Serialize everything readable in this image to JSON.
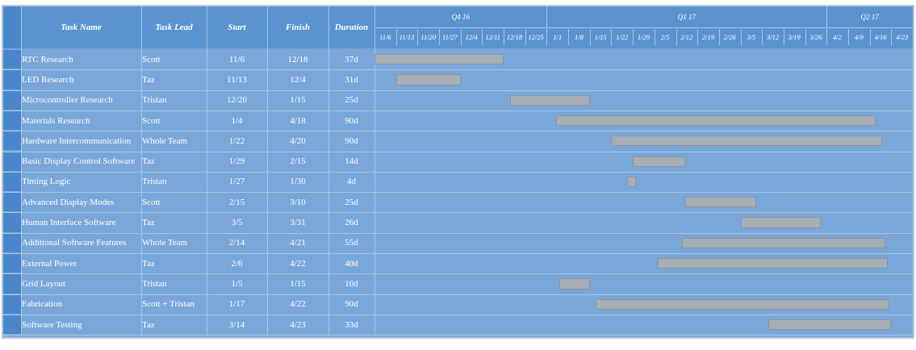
{
  "columns": {
    "task_name": "Task Name",
    "task_lead": "Task Lead",
    "start": "Start",
    "finish": "Finish",
    "duration": "Duration"
  },
  "chart_data": {
    "type": "gantt",
    "timeline": {
      "quarters": [
        "Q4 16",
        "Q1 17",
        "Q2 17"
      ],
      "weeks": [
        "11/6",
        "11/13",
        "11/20",
        "11/27",
        "12/4",
        "12/11",
        "12/18",
        "12/25",
        "1/1",
        "1/8",
        "1/15",
        "1/22",
        "1/29",
        "2/5",
        "2/12",
        "2/19",
        "2/26",
        "3/5",
        "3/12",
        "3/19",
        "3/26",
        "4/2",
        "4/9",
        "4/16",
        "4/23"
      ]
    },
    "tasks": [
      {
        "name": "RTC Research",
        "lead": "Scott",
        "start": "11/6",
        "finish": "12/18",
        "duration": "37d"
      },
      {
        "name": "LED Research",
        "lead": "Taz",
        "start": "11/13",
        "finish": "12/4",
        "duration": "31d"
      },
      {
        "name": "Microcontroller Research",
        "lead": "Tristan",
        "start": "12/20",
        "finish": "1/15",
        "duration": "25d"
      },
      {
        "name": "Materials Research",
        "lead": "Scott",
        "start": "1/4",
        "finish": "4/18",
        "duration": "90d"
      },
      {
        "name": "Hardware Intercommunication",
        "lead": "Whole Team",
        "start": "1/22",
        "finish": "4/20",
        "duration": "90d"
      },
      {
        "name": "Basic Display Control Software",
        "lead": "Taz",
        "start": "1/29",
        "finish": "2/15",
        "duration": "14d"
      },
      {
        "name": "Timing Logic",
        "lead": "Tristan",
        "start": "1/27",
        "finish": "1/30",
        "duration": "4d"
      },
      {
        "name": "Advanced Display Modes",
        "lead": "Scott",
        "start": "2/15",
        "finish": "3/10",
        "duration": "25d"
      },
      {
        "name": "Human Interface Software",
        "lead": "Taz",
        "start": "3/5",
        "finish": "3/31",
        "duration": "26d"
      },
      {
        "name": "Additional Software Features",
        "lead": "Whole Team",
        "start": "2/14",
        "finish": "4/21",
        "duration": "55d"
      },
      {
        "name": "External Power",
        "lead": "Taz",
        "start": "2/6",
        "finish": "4/22",
        "duration": "40d"
      },
      {
        "name": "Grid Layout",
        "lead": "Tristan",
        "start": "1/5",
        "finish": "1/15",
        "duration": "10d"
      },
      {
        "name": "Fabrication",
        "lead": "Scott + Tristan",
        "start": "1/17",
        "finish": "4/22",
        "duration": "90d"
      },
      {
        "name": "Software Testing",
        "lead": "Taz",
        "start": "3/14",
        "finish": "4/23",
        "duration": "33d"
      }
    ],
    "colors": {
      "background": "#7aa7d9",
      "header": "#5b93d1",
      "bar": "#a8aeb6",
      "grid": "#a9c4e6"
    }
  }
}
